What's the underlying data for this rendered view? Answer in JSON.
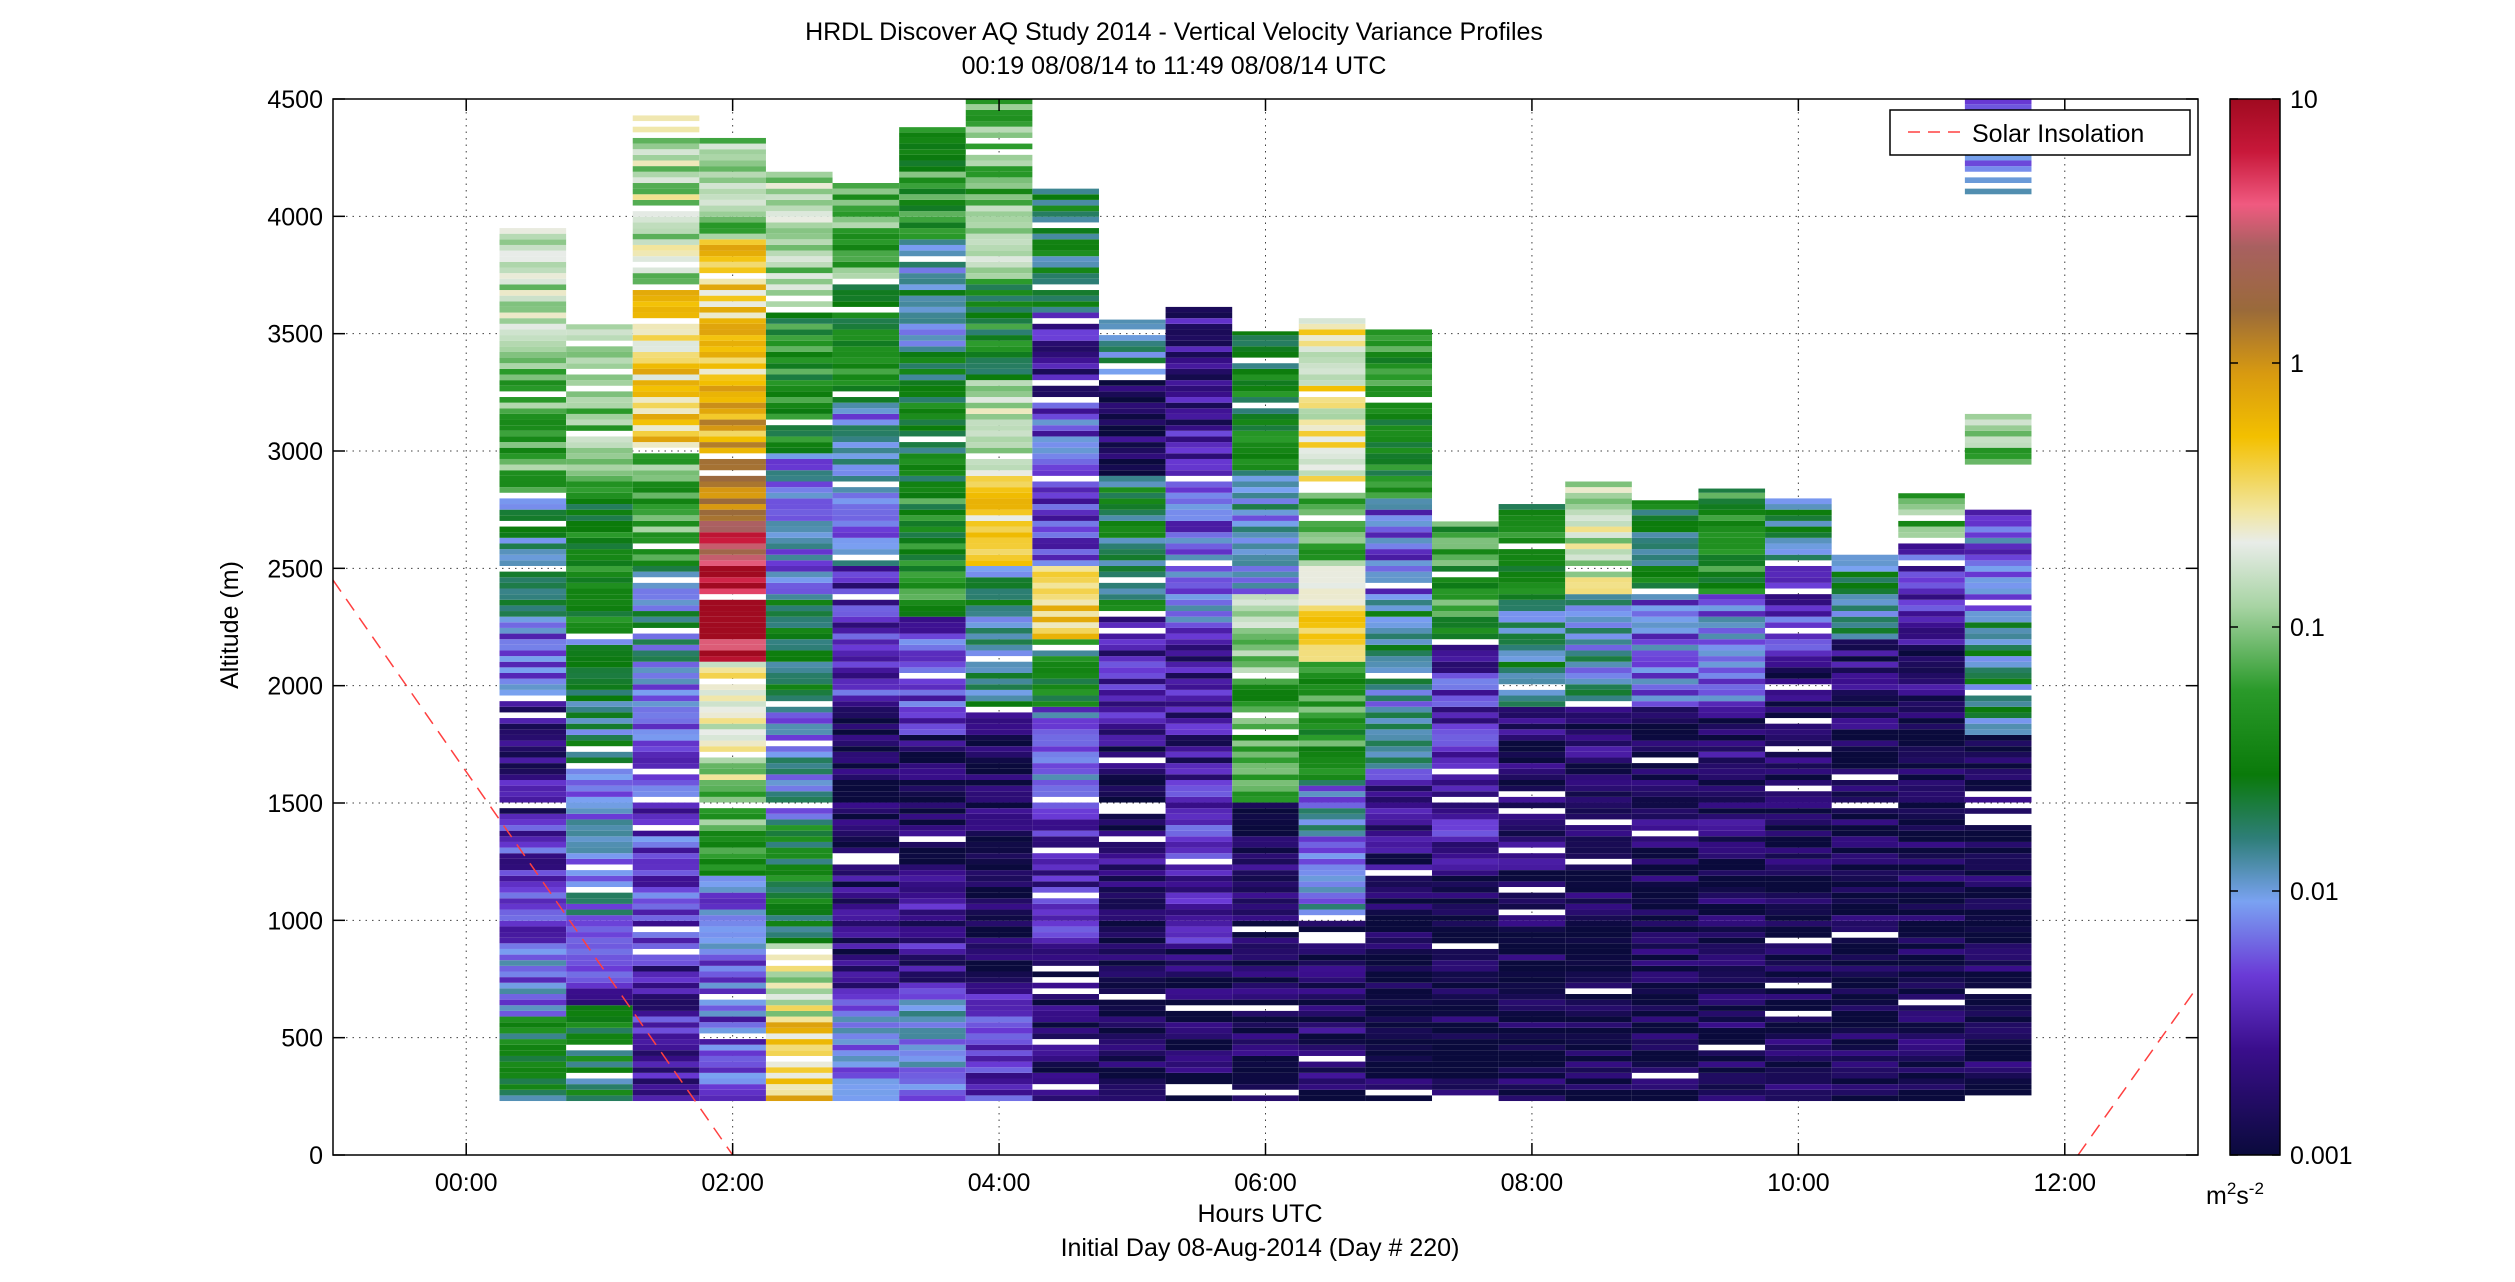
{
  "chart_data": {
    "type": "heatmap",
    "title": "HRDL Discover AQ Study 2014 - Vertical Velocity Variance Profiles",
    "subtitle": "00:19 08/08/14 to 11:49 08/08/14  UTC",
    "xlabel": "Hours UTC",
    "ylabel": "Altitude (m)",
    "footer": "Initial Day 08-Aug-2014 (Day # 220)",
    "xlim": [
      -1.0,
      13.0
    ],
    "ylim": [
      0,
      4500
    ],
    "grid": true,
    "xticks": [
      {
        "value": 0,
        "label": "00:00"
      },
      {
        "value": 2,
        "label": "02:00"
      },
      {
        "value": 4,
        "label": "04:00"
      },
      {
        "value": 6,
        "label": "06:00"
      },
      {
        "value": 8,
        "label": "08:00"
      },
      {
        "value": 10,
        "label": "10:00"
      },
      {
        "value": 12,
        "label": "12:00"
      }
    ],
    "yticks": [
      {
        "value": 0,
        "label": "0"
      },
      {
        "value": 500,
        "label": "500"
      },
      {
        "value": 1000,
        "label": "1000"
      },
      {
        "value": 1500,
        "label": "1500"
      },
      {
        "value": 2000,
        "label": "2000"
      },
      {
        "value": 2500,
        "label": "2500"
      },
      {
        "value": 3000,
        "label": "3000"
      },
      {
        "value": 3500,
        "label": "3500"
      },
      {
        "value": 4000,
        "label": "4000"
      },
      {
        "value": 4500,
        "label": "4500"
      }
    ],
    "colorbar": {
      "scale": "log",
      "range": [
        0.001,
        10
      ],
      "ticks": [
        {
          "value": 10,
          "label": "10"
        },
        {
          "value": 1,
          "label": "1"
        },
        {
          "value": 0.1,
          "label": "0.1"
        },
        {
          "value": 0.01,
          "label": "0.01"
        },
        {
          "value": 0.001,
          "label": "0.001"
        }
      ],
      "unit_base": "m",
      "unit_exp1": "2",
      "unit_mid": "s",
      "unit_exp2": "-2",
      "stops": [
        {
          "v": 0.0,
          "c": "#0a0a3c"
        },
        {
          "v": 0.1,
          "c": "#3a0e8c"
        },
        {
          "v": 0.17,
          "c": "#6a3ad6"
        },
        {
          "v": 0.24,
          "c": "#7aa2f2"
        },
        {
          "v": 0.3,
          "c": "#2e7e78"
        },
        {
          "v": 0.36,
          "c": "#0a7a0a"
        },
        {
          "v": 0.44,
          "c": "#2a9a2a"
        },
        {
          "v": 0.52,
          "c": "#a8d4a4"
        },
        {
          "v": 0.58,
          "c": "#e8ece8"
        },
        {
          "v": 0.61,
          "c": "#f2e6a0"
        },
        {
          "v": 0.68,
          "c": "#f3c000"
        },
        {
          "v": 0.74,
          "c": "#d89a10"
        },
        {
          "v": 0.8,
          "c": "#9a6a3a"
        },
        {
          "v": 0.86,
          "c": "#a86060"
        },
        {
          "v": 0.9,
          "c": "#f05a80"
        },
        {
          "v": 0.95,
          "c": "#c8183a"
        },
        {
          "v": 1.0,
          "c": "#a00a20"
        }
      ]
    },
    "series": [
      {
        "name": "Solar Insolation",
        "style": "dashed",
        "color": "#ff4040",
        "segments": [
          [
            [
              -1.0,
              2450
            ],
            [
              2.0,
              0
            ]
          ],
          [
            [
              12.1,
              0
            ],
            [
              13.0,
              720
            ]
          ]
        ]
      }
    ],
    "profiles": [
      {
        "t": 0.5,
        "top": 3960,
        "bottom": 230,
        "bands": [
          [
            230,
            600,
            0.35
          ],
          [
            600,
            900,
            0.21
          ],
          [
            900,
            1400,
            0.14
          ],
          [
            1400,
            1900,
            0.1
          ],
          [
            1900,
            2300,
            0.18
          ],
          [
            2300,
            2800,
            0.3
          ],
          [
            2800,
            3400,
            0.45
          ],
          [
            3400,
            3960,
            0.52
          ]
        ]
      },
      {
        "t": 1.0,
        "top": 3540,
        "bottom": 230,
        "bands": [
          [
            230,
            650,
            0.34
          ],
          [
            650,
            1000,
            0.14
          ],
          [
            1000,
            1600,
            0.24
          ],
          [
            1600,
            2200,
            0.3
          ],
          [
            2200,
            2800,
            0.38
          ],
          [
            2800,
            3540,
            0.48
          ]
        ]
      },
      {
        "t": 1.5,
        "top": 4440,
        "bottom": 230,
        "bands": [
          [
            230,
            900,
            0.12
          ],
          [
            900,
            1600,
            0.16
          ],
          [
            1600,
            2100,
            0.2
          ],
          [
            2100,
            2500,
            0.28
          ],
          [
            2500,
            3000,
            0.46
          ],
          [
            3000,
            3700,
            0.65
          ],
          [
            3700,
            4440,
            0.54
          ]
        ]
      },
      {
        "t": 2.0,
        "top": 4340,
        "bottom": 230,
        "bands": [
          [
            230,
            600,
            0.18
          ],
          [
            600,
            1200,
            0.2
          ],
          [
            1200,
            1600,
            0.45
          ],
          [
            1600,
            1900,
            0.55
          ],
          [
            1900,
            2100,
            0.62
          ],
          [
            2100,
            2500,
            0.96
          ],
          [
            2500,
            2700,
            0.9
          ],
          [
            2700,
            3000,
            0.8
          ],
          [
            3000,
            3300,
            0.7
          ],
          [
            3300,
            3900,
            0.66
          ],
          [
            3900,
            4340,
            0.5
          ]
        ]
      },
      {
        "t": 2.5,
        "top": 4200,
        "bottom": 230,
        "bands": [
          [
            230,
            600,
            0.66
          ],
          [
            600,
            900,
            0.56
          ],
          [
            900,
            1400,
            0.36
          ],
          [
            1400,
            1900,
            0.24
          ],
          [
            1900,
            2400,
            0.35
          ],
          [
            2400,
            3000,
            0.22
          ],
          [
            3000,
            3600,
            0.4
          ],
          [
            3600,
            4200,
            0.52
          ]
        ]
      },
      {
        "t": 3.0,
        "top": 4150,
        "bottom": 230,
        "bands": [
          [
            230,
            700,
            0.22
          ],
          [
            700,
            1300,
            0.06
          ],
          [
            1300,
            1900,
            0.02
          ],
          [
            1900,
            2500,
            0.14
          ],
          [
            2500,
            3200,
            0.24
          ],
          [
            3200,
            3700,
            0.38
          ],
          [
            3700,
            4150,
            0.46
          ]
        ]
      },
      {
        "t": 3.5,
        "top": 4380,
        "bottom": 230,
        "bands": [
          [
            230,
            700,
            0.22
          ],
          [
            700,
            1200,
            0.1
          ],
          [
            1200,
            1800,
            0.04
          ],
          [
            1800,
            2300,
            0.16
          ],
          [
            2300,
            2800,
            0.4
          ],
          [
            2800,
            3400,
            0.36
          ],
          [
            3400,
            3900,
            0.28
          ],
          [
            3900,
            4380,
            0.42
          ]
        ]
      },
      {
        "t": 4.0,
        "top": 4500,
        "bottom": 230,
        "bands": [
          [
            230,
            700,
            0.14
          ],
          [
            700,
            1300,
            0.02
          ],
          [
            1300,
            1900,
            0.03
          ],
          [
            1900,
            2500,
            0.3
          ],
          [
            2500,
            2900,
            0.66
          ],
          [
            2900,
            3300,
            0.56
          ],
          [
            3300,
            3700,
            0.38
          ],
          [
            3700,
            4100,
            0.5
          ],
          [
            4100,
            4500,
            0.46
          ]
        ]
      },
      {
        "t": 4.5,
        "top": 4120,
        "bottom": 230,
        "bands": [
          [
            230,
            900,
            0.04
          ],
          [
            900,
            1500,
            0.12
          ],
          [
            1500,
            1900,
            0.2
          ],
          [
            1900,
            2200,
            0.36
          ],
          [
            2200,
            2500,
            0.66
          ],
          [
            2500,
            3200,
            0.18
          ],
          [
            3200,
            3600,
            0.1
          ],
          [
            3600,
            4120,
            0.34
          ]
        ]
      },
      {
        "t": 5.0,
        "top": 3560,
        "bottom": 230,
        "bands": [
          [
            230,
            1000,
            0.02
          ],
          [
            1000,
            1800,
            0.06
          ],
          [
            1800,
            2300,
            0.12
          ],
          [
            2300,
            2900,
            0.34
          ],
          [
            2900,
            3300,
            0.04
          ],
          [
            3300,
            3560,
            0.3
          ]
        ]
      },
      {
        "t": 5.5,
        "top": 3620,
        "bottom": 230,
        "bands": [
          [
            230,
            900,
            0.03
          ],
          [
            900,
            1600,
            0.14
          ],
          [
            1600,
            2200,
            0.1
          ],
          [
            2200,
            2900,
            0.2
          ],
          [
            2900,
            3300,
            0.1
          ],
          [
            3300,
            3620,
            0.08
          ]
        ]
      },
      {
        "t": 6.0,
        "top": 3510,
        "bottom": 230,
        "bands": [
          [
            230,
            1000,
            0.03
          ],
          [
            1000,
            1500,
            0.06
          ],
          [
            1500,
            2000,
            0.44
          ],
          [
            2000,
            2400,
            0.52
          ],
          [
            2400,
            2900,
            0.26
          ],
          [
            2900,
            3510,
            0.36
          ]
        ]
      },
      {
        "t": 6.5,
        "top": 3570,
        "bottom": 230,
        "bands": [
          [
            230,
            1000,
            0.04
          ],
          [
            1000,
            1600,
            0.24
          ],
          [
            1600,
            2100,
            0.42
          ],
          [
            2100,
            2500,
            0.62
          ],
          [
            2500,
            2850,
            0.48
          ],
          [
            2850,
            3570,
            0.6
          ]
        ]
      },
      {
        "t": 7.0,
        "top": 3530,
        "bottom": 230,
        "bands": [
          [
            230,
            1100,
            0.02
          ],
          [
            1100,
            1600,
            0.08
          ],
          [
            1600,
            2000,
            0.26
          ],
          [
            2000,
            2400,
            0.3
          ],
          [
            2400,
            2800,
            0.2
          ],
          [
            2800,
            3530,
            0.4
          ]
        ]
      },
      {
        "t": 7.5,
        "top": 2700,
        "bottom": 230,
        "bands": [
          [
            230,
            1200,
            0.02
          ],
          [
            1200,
            1700,
            0.12
          ],
          [
            1700,
            2200,
            0.14
          ],
          [
            2200,
            2700,
            0.42
          ]
        ]
      },
      {
        "t": 8.0,
        "top": 2780,
        "bottom": 230,
        "bands": [
          [
            230,
            1200,
            0.02
          ],
          [
            1200,
            1900,
            0.05
          ],
          [
            1900,
            2400,
            0.3
          ],
          [
            2400,
            2780,
            0.38
          ]
        ]
      },
      {
        "t": 8.5,
        "top": 2880,
        "bottom": 230,
        "bands": [
          [
            230,
            1300,
            0.02
          ],
          [
            1300,
            1900,
            0.06
          ],
          [
            1900,
            2400,
            0.26
          ],
          [
            2400,
            2880,
            0.56
          ]
        ]
      },
      {
        "t": 9.0,
        "top": 2790,
        "bottom": 230,
        "bands": [
          [
            230,
            1300,
            0.02
          ],
          [
            1300,
            1900,
            0.04
          ],
          [
            1900,
            2400,
            0.2
          ],
          [
            2400,
            2790,
            0.34
          ]
        ]
      },
      {
        "t": 9.5,
        "top": 2840,
        "bottom": 230,
        "bands": [
          [
            230,
            1300,
            0.02
          ],
          [
            1300,
            1900,
            0.06
          ],
          [
            1900,
            2400,
            0.2
          ],
          [
            2400,
            2840,
            0.4
          ]
        ]
      },
      {
        "t": 10.0,
        "top": 2810,
        "bottom": 230,
        "bands": [
          [
            230,
            1500,
            0.02
          ],
          [
            1500,
            2100,
            0.04
          ],
          [
            2100,
            2500,
            0.16
          ],
          [
            2500,
            2810,
            0.3
          ]
        ]
      },
      {
        "t": 10.5,
        "top": 2570,
        "bottom": 230,
        "bands": [
          [
            230,
            1800,
            0.02
          ],
          [
            1800,
            2200,
            0.06
          ],
          [
            2200,
            2570,
            0.3
          ]
        ]
      },
      {
        "t": 11.0,
        "top": 2820,
        "bottom": 230,
        "bands": [
          [
            230,
            1800,
            0.02
          ],
          [
            1800,
            2200,
            0.06
          ],
          [
            2200,
            2600,
            0.14
          ],
          [
            2600,
            2820,
            0.46
          ]
        ]
      },
      {
        "t": 11.5,
        "top": 4500,
        "bottom": 230,
        "bands": [
          [
            230,
            1800,
            0.02
          ],
          [
            1800,
            2300,
            0.3
          ],
          [
            2300,
            2750,
            0.2
          ],
          [
            2950,
            3150,
            0.5
          ],
          [
            4100,
            4500,
            0.2
          ]
        ]
      }
    ]
  }
}
